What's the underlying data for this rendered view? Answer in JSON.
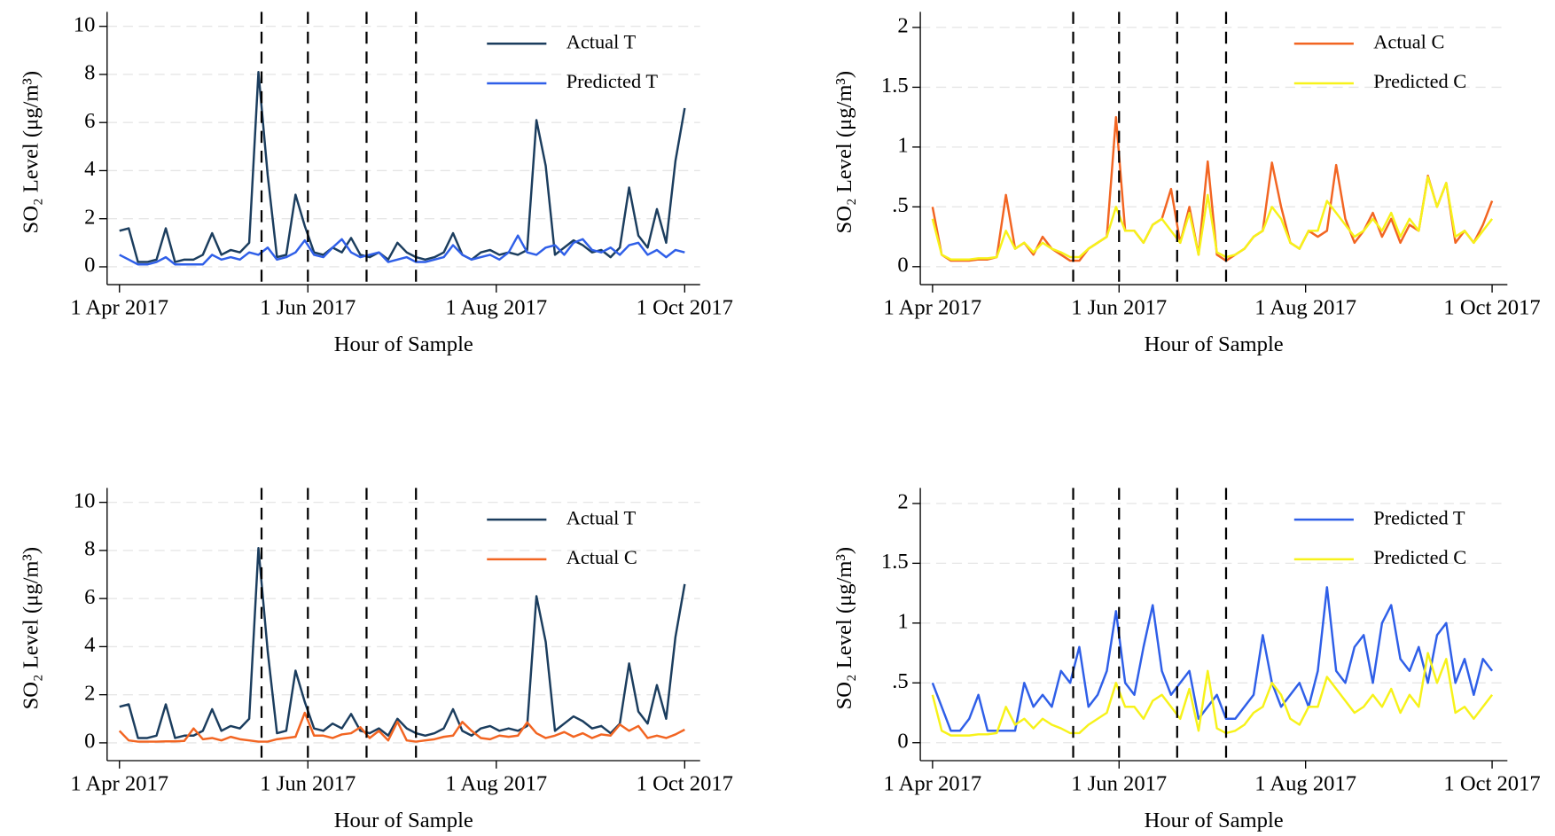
{
  "chart_data": [
    {
      "type": "line",
      "xlabel": "Hour of Sample",
      "ylabel": "SO₂ Level (μg/m³)",
      "grid": true,
      "legend": "upper right",
      "xlim": [
        "2017-03-28",
        "2017-10-06"
      ],
      "ylim": [
        -0.74,
        10.6
      ],
      "xticks": [
        {
          "value": "2017-04-01",
          "label": "1 Apr 2017"
        },
        {
          "value": "2017-06-01",
          "label": "1 Jun 2017"
        },
        {
          "value": "2017-08-01",
          "label": "1 Aug 2017"
        },
        {
          "value": "2017-10-01",
          "label": "1 Oct 2017"
        }
      ],
      "yticks": [
        0,
        2,
        4,
        6,
        8,
        10
      ],
      "vlines": [
        "2017-05-17",
        "2017-06-01",
        "2017-06-20",
        "2017-07-06"
      ],
      "x": [
        "2017-04-01",
        "2017-04-04",
        "2017-04-07",
        "2017-04-10",
        "2017-04-13",
        "2017-04-16",
        "2017-04-19",
        "2017-04-22",
        "2017-04-25",
        "2017-04-28",
        "2017-05-01",
        "2017-05-04",
        "2017-05-07",
        "2017-05-10",
        "2017-05-13",
        "2017-05-16",
        "2017-05-19",
        "2017-05-22",
        "2017-05-25",
        "2017-05-28",
        "2017-05-31",
        "2017-06-03",
        "2017-06-06",
        "2017-06-09",
        "2017-06-12",
        "2017-06-15",
        "2017-06-18",
        "2017-06-21",
        "2017-06-24",
        "2017-06-27",
        "2017-06-30",
        "2017-07-03",
        "2017-07-06",
        "2017-07-09",
        "2017-07-12",
        "2017-07-15",
        "2017-07-18",
        "2017-07-21",
        "2017-07-24",
        "2017-07-27",
        "2017-07-30",
        "2017-08-02",
        "2017-08-05",
        "2017-08-08",
        "2017-08-11",
        "2017-08-14",
        "2017-08-17",
        "2017-08-20",
        "2017-08-23",
        "2017-08-26",
        "2017-08-29",
        "2017-09-01",
        "2017-09-04",
        "2017-09-07",
        "2017-09-10",
        "2017-09-13",
        "2017-09-16",
        "2017-09-19",
        "2017-09-22",
        "2017-09-25",
        "2017-09-28",
        "2017-10-01"
      ],
      "series": [
        {
          "name": "Actual T",
          "color": "#1b3d5e",
          "values": [
            1.5,
            1.6,
            0.2,
            0.2,
            0.3,
            1.6,
            0.2,
            0.3,
            0.3,
            0.5,
            1.4,
            0.5,
            0.7,
            0.6,
            1.0,
            8.1,
            3.8,
            0.4,
            0.5,
            3.0,
            1.7,
            0.6,
            0.5,
            0.8,
            0.6,
            1.2,
            0.5,
            0.4,
            0.6,
            0.3,
            1.0,
            0.6,
            0.4,
            0.3,
            0.4,
            0.6,
            1.4,
            0.5,
            0.3,
            0.6,
            0.7,
            0.5,
            0.6,
            0.5,
            0.7,
            6.1,
            4.2,
            0.5,
            0.8,
            1.1,
            0.9,
            0.6,
            0.7,
            0.4,
            0.8,
            3.3,
            1.3,
            0.8,
            2.4,
            1.0,
            4.4,
            6.6
          ]
        },
        {
          "name": "Predicted T",
          "color": "#2f5fe8",
          "values": [
            0.5,
            0.3,
            0.1,
            0.1,
            0.2,
            0.4,
            0.1,
            0.1,
            0.1,
            0.1,
            0.5,
            0.3,
            0.4,
            0.3,
            0.6,
            0.5,
            0.8,
            0.3,
            0.4,
            0.6,
            1.1,
            0.5,
            0.4,
            0.8,
            1.15,
            0.6,
            0.4,
            0.5,
            0.6,
            0.2,
            0.3,
            0.4,
            0.2,
            0.2,
            0.3,
            0.4,
            0.9,
            0.5,
            0.3,
            0.4,
            0.5,
            0.3,
            0.6,
            1.3,
            0.6,
            0.5,
            0.8,
            0.9,
            0.5,
            1.0,
            1.15,
            0.7,
            0.6,
            0.8,
            0.5,
            0.9,
            1.0,
            0.5,
            0.7,
            0.4,
            0.7,
            0.6
          ]
        }
      ]
    },
    {
      "type": "line",
      "xlabel": "Hour of Sample",
      "ylabel": "SO₂ Level (μg/m³)",
      "grid": true,
      "legend": "upper right",
      "xlim": [
        "2017-03-28",
        "2017-10-06"
      ],
      "ylim": [
        -0.15,
        2.13
      ],
      "xticks": [
        {
          "value": "2017-04-01",
          "label": "1 Apr 2017"
        },
        {
          "value": "2017-06-01",
          "label": "1 Jun 2017"
        },
        {
          "value": "2017-08-01",
          "label": "1 Aug 2017"
        },
        {
          "value": "2017-10-01",
          "label": "1 Oct 2017"
        }
      ],
      "yticks": [
        0,
        {
          "value": 0.5,
          "label": ".5"
        },
        1,
        1.5,
        2
      ],
      "vlines": [
        "2017-05-17",
        "2017-06-01",
        "2017-06-20",
        "2017-07-06"
      ],
      "x": [
        "2017-04-01",
        "2017-04-04",
        "2017-04-07",
        "2017-04-10",
        "2017-04-13",
        "2017-04-16",
        "2017-04-19",
        "2017-04-22",
        "2017-04-25",
        "2017-04-28",
        "2017-05-01",
        "2017-05-04",
        "2017-05-07",
        "2017-05-10",
        "2017-05-13",
        "2017-05-16",
        "2017-05-19",
        "2017-05-22",
        "2017-05-25",
        "2017-05-28",
        "2017-05-31",
        "2017-06-03",
        "2017-06-06",
        "2017-06-09",
        "2017-06-12",
        "2017-06-15",
        "2017-06-18",
        "2017-06-21",
        "2017-06-24",
        "2017-06-27",
        "2017-06-30",
        "2017-07-03",
        "2017-07-06",
        "2017-07-09",
        "2017-07-12",
        "2017-07-15",
        "2017-07-18",
        "2017-07-21",
        "2017-07-24",
        "2017-07-27",
        "2017-07-30",
        "2017-08-02",
        "2017-08-05",
        "2017-08-08",
        "2017-08-11",
        "2017-08-14",
        "2017-08-17",
        "2017-08-20",
        "2017-08-23",
        "2017-08-26",
        "2017-08-29",
        "2017-09-01",
        "2017-09-04",
        "2017-09-07",
        "2017-09-10",
        "2017-09-13",
        "2017-09-16",
        "2017-09-19",
        "2017-09-22",
        "2017-09-25",
        "2017-09-28",
        "2017-10-01"
      ],
      "series": [
        {
          "name": "Actual C",
          "color": "#f26522",
          "values": [
            0.5,
            0.1,
            0.05,
            0.05,
            0.05,
            0.06,
            0.06,
            0.08,
            0.6,
            0.15,
            0.2,
            0.1,
            0.25,
            0.15,
            0.1,
            0.05,
            0.05,
            0.15,
            0.2,
            0.25,
            1.25,
            0.3,
            0.3,
            0.2,
            0.35,
            0.4,
            0.65,
            0.2,
            0.5,
            0.1,
            0.88,
            0.1,
            0.05,
            0.1,
            0.15,
            0.25,
            0.3,
            0.87,
            0.5,
            0.2,
            0.15,
            0.3,
            0.25,
            0.3,
            0.85,
            0.4,
            0.2,
            0.3,
            0.45,
            0.25,
            0.4,
            0.2,
            0.35,
            0.3,
            0.76,
            0.5,
            0.7,
            0.2,
            0.3,
            0.2,
            0.35,
            0.55
          ]
        },
        {
          "name": "Predicted C",
          "color": "#f7f21a",
          "values": [
            0.4,
            0.1,
            0.06,
            0.06,
            0.06,
            0.07,
            0.07,
            0.08,
            0.3,
            0.15,
            0.2,
            0.12,
            0.2,
            0.15,
            0.12,
            0.08,
            0.08,
            0.15,
            0.2,
            0.25,
            0.5,
            0.3,
            0.3,
            0.2,
            0.35,
            0.4,
            0.3,
            0.2,
            0.45,
            0.1,
            0.6,
            0.12,
            0.08,
            0.1,
            0.15,
            0.25,
            0.3,
            0.5,
            0.4,
            0.2,
            0.15,
            0.3,
            0.3,
            0.55,
            0.45,
            0.35,
            0.25,
            0.3,
            0.4,
            0.3,
            0.45,
            0.25,
            0.4,
            0.3,
            0.75,
            0.5,
            0.7,
            0.25,
            0.3,
            0.2,
            0.3,
            0.4
          ]
        }
      ]
    },
    {
      "type": "line",
      "xlabel": "Hour of Sample",
      "ylabel": "SO₂ Level (μg/m³)",
      "grid": true,
      "legend": "upper right",
      "xlim": [
        "2017-03-28",
        "2017-10-06"
      ],
      "ylim": [
        -0.74,
        10.6
      ],
      "xticks": [
        {
          "value": "2017-04-01",
          "label": "1 Apr 2017"
        },
        {
          "value": "2017-06-01",
          "label": "1 Jun 2017"
        },
        {
          "value": "2017-08-01",
          "label": "1 Aug 2017"
        },
        {
          "value": "2017-10-01",
          "label": "1 Oct 2017"
        }
      ],
      "yticks": [
        0,
        2,
        4,
        6,
        8,
        10
      ],
      "vlines": [
        "2017-05-17",
        "2017-06-01",
        "2017-06-20",
        "2017-07-06"
      ],
      "x": [
        "2017-04-01",
        "2017-04-04",
        "2017-04-07",
        "2017-04-10",
        "2017-04-13",
        "2017-04-16",
        "2017-04-19",
        "2017-04-22",
        "2017-04-25",
        "2017-04-28",
        "2017-05-01",
        "2017-05-04",
        "2017-05-07",
        "2017-05-10",
        "2017-05-13",
        "2017-05-16",
        "2017-05-19",
        "2017-05-22",
        "2017-05-25",
        "2017-05-28",
        "2017-05-31",
        "2017-06-03",
        "2017-06-06",
        "2017-06-09",
        "2017-06-12",
        "2017-06-15",
        "2017-06-18",
        "2017-06-21",
        "2017-06-24",
        "2017-06-27",
        "2017-06-30",
        "2017-07-03",
        "2017-07-06",
        "2017-07-09",
        "2017-07-12",
        "2017-07-15",
        "2017-07-18",
        "2017-07-21",
        "2017-07-24",
        "2017-07-27",
        "2017-07-30",
        "2017-08-02",
        "2017-08-05",
        "2017-08-08",
        "2017-08-11",
        "2017-08-14",
        "2017-08-17",
        "2017-08-20",
        "2017-08-23",
        "2017-08-26",
        "2017-08-29",
        "2017-09-01",
        "2017-09-04",
        "2017-09-07",
        "2017-09-10",
        "2017-09-13",
        "2017-09-16",
        "2017-09-19",
        "2017-09-22",
        "2017-09-25",
        "2017-09-28",
        "2017-10-01"
      ],
      "series": [
        {
          "name": "Actual T",
          "color": "#1b3d5e",
          "values": [
            1.5,
            1.6,
            0.2,
            0.2,
            0.3,
            1.6,
            0.2,
            0.3,
            0.3,
            0.5,
            1.4,
            0.5,
            0.7,
            0.6,
            1.0,
            8.1,
            3.8,
            0.4,
            0.5,
            3.0,
            1.7,
            0.6,
            0.5,
            0.8,
            0.6,
            1.2,
            0.5,
            0.4,
            0.6,
            0.3,
            1.0,
            0.6,
            0.4,
            0.3,
            0.4,
            0.6,
            1.4,
            0.5,
            0.3,
            0.6,
            0.7,
            0.5,
            0.6,
            0.5,
            0.7,
            6.1,
            4.2,
            0.5,
            0.8,
            1.1,
            0.9,
            0.6,
            0.7,
            0.4,
            0.8,
            3.3,
            1.3,
            0.8,
            2.4,
            1.0,
            4.4,
            6.6
          ]
        },
        {
          "name": "Actual C",
          "color": "#f26522",
          "values": [
            0.5,
            0.1,
            0.05,
            0.05,
            0.05,
            0.06,
            0.06,
            0.08,
            0.6,
            0.15,
            0.2,
            0.1,
            0.25,
            0.15,
            0.1,
            0.05,
            0.05,
            0.15,
            0.2,
            0.25,
            1.25,
            0.3,
            0.3,
            0.2,
            0.35,
            0.4,
            0.65,
            0.2,
            0.5,
            0.1,
            0.88,
            0.1,
            0.05,
            0.1,
            0.15,
            0.25,
            0.3,
            0.87,
            0.5,
            0.2,
            0.15,
            0.3,
            0.25,
            0.3,
            0.85,
            0.4,
            0.2,
            0.3,
            0.45,
            0.25,
            0.4,
            0.2,
            0.35,
            0.3,
            0.76,
            0.5,
            0.7,
            0.2,
            0.3,
            0.2,
            0.35,
            0.55
          ]
        }
      ]
    },
    {
      "type": "line",
      "xlabel": "Hour of Sample",
      "ylabel": "SO₂ Level (μg/m³)",
      "grid": true,
      "legend": "upper right",
      "xlim": [
        "2017-03-28",
        "2017-10-06"
      ],
      "ylim": [
        -0.15,
        2.13
      ],
      "xticks": [
        {
          "value": "2017-04-01",
          "label": "1 Apr 2017"
        },
        {
          "value": "2017-06-01",
          "label": "1 Jun 2017"
        },
        {
          "value": "2017-08-01",
          "label": "1 Aug 2017"
        },
        {
          "value": "2017-10-01",
          "label": "1 Oct 2017"
        }
      ],
      "yticks": [
        0,
        {
          "value": 0.5,
          "label": ".5"
        },
        1,
        1.5,
        2
      ],
      "vlines": [
        "2017-05-17",
        "2017-06-01",
        "2017-06-20",
        "2017-07-06"
      ],
      "x": [
        "2017-04-01",
        "2017-04-04",
        "2017-04-07",
        "2017-04-10",
        "2017-04-13",
        "2017-04-16",
        "2017-04-19",
        "2017-04-22",
        "2017-04-25",
        "2017-04-28",
        "2017-05-01",
        "2017-05-04",
        "2017-05-07",
        "2017-05-10",
        "2017-05-13",
        "2017-05-16",
        "2017-05-19",
        "2017-05-22",
        "2017-05-25",
        "2017-05-28",
        "2017-05-31",
        "2017-06-03",
        "2017-06-06",
        "2017-06-09",
        "2017-06-12",
        "2017-06-15",
        "2017-06-18",
        "2017-06-21",
        "2017-06-24",
        "2017-06-27",
        "2017-06-30",
        "2017-07-03",
        "2017-07-06",
        "2017-07-09",
        "2017-07-12",
        "2017-07-15",
        "2017-07-18",
        "2017-07-21",
        "2017-07-24",
        "2017-07-27",
        "2017-07-30",
        "2017-08-02",
        "2017-08-05",
        "2017-08-08",
        "2017-08-11",
        "2017-08-14",
        "2017-08-17",
        "2017-08-20",
        "2017-08-23",
        "2017-08-26",
        "2017-08-29",
        "2017-09-01",
        "2017-09-04",
        "2017-09-07",
        "2017-09-10",
        "2017-09-13",
        "2017-09-16",
        "2017-09-19",
        "2017-09-22",
        "2017-09-25",
        "2017-09-28",
        "2017-10-01"
      ],
      "series": [
        {
          "name": "Predicted T",
          "color": "#2f5fe8",
          "values": [
            0.5,
            0.3,
            0.1,
            0.1,
            0.2,
            0.4,
            0.1,
            0.1,
            0.1,
            0.1,
            0.5,
            0.3,
            0.4,
            0.3,
            0.6,
            0.5,
            0.8,
            0.3,
            0.4,
            0.6,
            1.1,
            0.5,
            0.4,
            0.8,
            1.15,
            0.6,
            0.4,
            0.5,
            0.6,
            0.2,
            0.3,
            0.4,
            0.2,
            0.2,
            0.3,
            0.4,
            0.9,
            0.5,
            0.3,
            0.4,
            0.5,
            0.3,
            0.6,
            1.3,
            0.6,
            0.5,
            0.8,
            0.9,
            0.5,
            1.0,
            1.15,
            0.7,
            0.6,
            0.8,
            0.5,
            0.9,
            1.0,
            0.5,
            0.7,
            0.4,
            0.7,
            0.6
          ]
        },
        {
          "name": "Predicted C",
          "color": "#f7f21a",
          "values": [
            0.4,
            0.1,
            0.06,
            0.06,
            0.06,
            0.07,
            0.07,
            0.08,
            0.3,
            0.15,
            0.2,
            0.12,
            0.2,
            0.15,
            0.12,
            0.08,
            0.08,
            0.15,
            0.2,
            0.25,
            0.5,
            0.3,
            0.3,
            0.2,
            0.35,
            0.4,
            0.3,
            0.2,
            0.45,
            0.1,
            0.6,
            0.12,
            0.08,
            0.1,
            0.15,
            0.25,
            0.3,
            0.5,
            0.4,
            0.2,
            0.15,
            0.3,
            0.3,
            0.55,
            0.45,
            0.35,
            0.25,
            0.3,
            0.4,
            0.3,
            0.45,
            0.25,
            0.4,
            0.3,
            0.75,
            0.5,
            0.7,
            0.25,
            0.3,
            0.2,
            0.3,
            0.4
          ]
        }
      ]
    }
  ]
}
